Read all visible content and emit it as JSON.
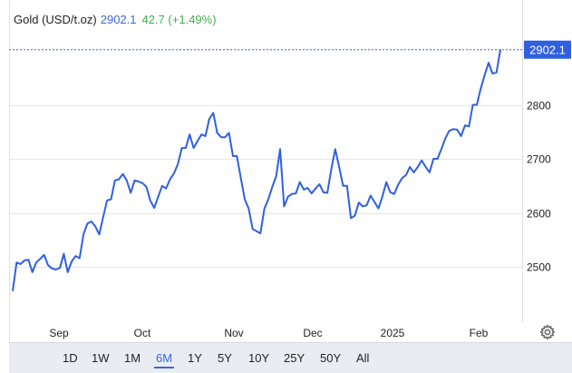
{
  "header": {
    "symbol": "Gold (USD/t.oz)",
    "price": "2902.1",
    "change": "42.7 (+1.49%)"
  },
  "last_price_label": "2902.1",
  "range_buttons": [
    "1D",
    "1W",
    "1M",
    "6M",
    "1Y",
    "5Y",
    "10Y",
    "25Y",
    "50Y",
    "All"
  ],
  "active_range": "6M",
  "colors": {
    "line": "#2f60e0",
    "price_tag": "#2f60e0",
    "change_up": "#3eb04b",
    "range_bar_bg": "#e9edf3"
  },
  "icons": {
    "settings": "gear-icon"
  },
  "chart_data": {
    "type": "line",
    "title": "Gold (USD/t.oz)",
    "xlabel": "",
    "ylabel": "",
    "x_ticks": [
      "Sep",
      "Oct",
      "Nov",
      "Dec",
      "2025",
      "Feb"
    ],
    "y_ticks": [
      2500,
      2600,
      2700,
      2800
    ],
    "ylim": [
      2440,
      2920
    ],
    "grid": true,
    "legend": "none",
    "last_value": 2902.1,
    "series": [
      {
        "values": [
          2455,
          2508,
          2505,
          2512,
          2513,
          2490,
          2508,
          2515,
          2522,
          2503,
          2497,
          2495,
          2498,
          2524,
          2490,
          2510,
          2520,
          2516,
          2560,
          2580,
          2584,
          2575,
          2560,
          2592,
          2623,
          2625,
          2660,
          2662,
          2672,
          2660,
          2637,
          2660,
          2658,
          2655,
          2648,
          2622,
          2609,
          2630,
          2650,
          2645,
          2662,
          2673,
          2690,
          2720,
          2720,
          2745,
          2720,
          2733,
          2745,
          2742,
          2774,
          2785,
          2748,
          2740,
          2740,
          2748,
          2705,
          2705,
          2665,
          2625,
          2608,
          2570,
          2566,
          2562,
          2608,
          2625,
          2648,
          2668,
          2718,
          2612,
          2630,
          2635,
          2636,
          2657,
          2643,
          2646,
          2636,
          2645,
          2653,
          2638,
          2637,
          2680,
          2718,
          2685,
          2650,
          2650,
          2590,
          2595,
          2619,
          2612,
          2614,
          2632,
          2620,
          2608,
          2630,
          2657,
          2638,
          2635,
          2652,
          2664,
          2670,
          2685,
          2675,
          2685,
          2697,
          2685,
          2675,
          2700,
          2700,
          2718,
          2738,
          2752,
          2755,
          2754,
          2742,
          2762,
          2760,
          2800,
          2800,
          2830,
          2855,
          2878,
          2858,
          2860,
          2902
        ]
      }
    ]
  }
}
